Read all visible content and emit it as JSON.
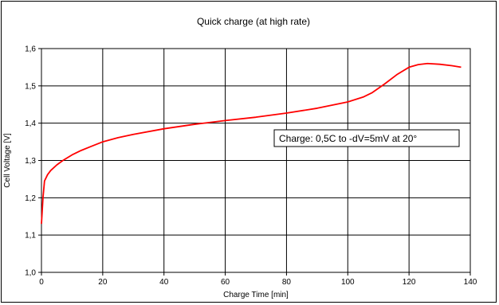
{
  "chart_data": {
    "type": "line",
    "title": "Quick charge (at high rate)",
    "xlabel": "Charge Time [min]",
    "ylabel": "Cell Voltage [V]",
    "xlim": [
      0,
      140
    ],
    "ylim": [
      1.0,
      1.6
    ],
    "x_ticks": [
      0,
      20,
      40,
      60,
      80,
      100,
      120,
      140
    ],
    "y_ticks": [
      1.0,
      1.1,
      1.2,
      1.3,
      1.4,
      1.5,
      1.6
    ],
    "x_tick_labels": [
      "0",
      "20",
      "40",
      "60",
      "80",
      "100",
      "120",
      "140"
    ],
    "y_tick_labels": [
      "1,0",
      "1,1",
      "1,2",
      "1,3",
      "1,4",
      "1,5",
      "1,6"
    ],
    "grid": true,
    "annotation": "Charge: 0,5C to -dV=5mV at 20°",
    "series": [
      {
        "color": "#ff0000",
        "x": [
          0,
          0.5,
          1,
          2,
          3,
          5,
          7,
          10,
          13,
          16,
          20,
          25,
          30,
          40,
          50,
          60,
          70,
          80,
          90,
          100,
          105,
          108,
          112,
          116,
          120,
          123,
          126,
          130,
          134,
          137
        ],
        "y": [
          1.13,
          1.2,
          1.245,
          1.262,
          1.273,
          1.288,
          1.3,
          1.315,
          1.327,
          1.337,
          1.35,
          1.361,
          1.37,
          1.385,
          1.397,
          1.407,
          1.416,
          1.427,
          1.44,
          1.457,
          1.47,
          1.482,
          1.505,
          1.53,
          1.55,
          1.557,
          1.56,
          1.558,
          1.554,
          1.55
        ]
      }
    ]
  }
}
